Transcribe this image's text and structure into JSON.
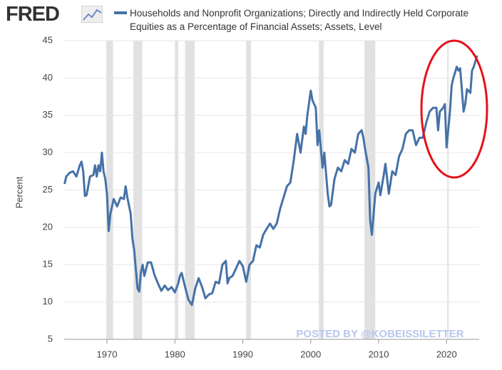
{
  "logo": "FRED",
  "chart_data": {
    "type": "line",
    "y_label": "Percent",
    "watermark": "POSTED BY @KOBEISSILETTER",
    "xlim": [
      1963.7,
      2024.8
    ],
    "xticks": [
      1970,
      1980,
      1990,
      2000,
      2010,
      2020
    ],
    "ylim": [
      5,
      45
    ],
    "yticks": [
      5,
      10,
      15,
      20,
      25,
      30,
      35,
      40,
      45
    ],
    "grid": true,
    "recessions": [
      [
        1969.9,
        1970.9
      ],
      [
        1973.9,
        1975.2
      ],
      [
        1980.0,
        1980.5
      ],
      [
        1981.5,
        1982.9
      ],
      [
        1990.5,
        1991.2
      ],
      [
        2001.2,
        2001.9
      ],
      [
        2007.9,
        2009.5
      ],
      [
        2020.1,
        2020.3
      ]
    ],
    "x": [
      1963.75,
      1964,
      1964.5,
      1965,
      1965.5,
      1966,
      1966.25,
      1966.5,
      1966.75,
      1967,
      1967.5,
      1968,
      1968.25,
      1968.5,
      1968.75,
      1969,
      1969.25,
      1969.5,
      1969.75,
      1970,
      1970.25,
      1970.5,
      1971,
      1971.5,
      1972,
      1972.5,
      1972.75,
      1973,
      1973.5,
      1973.75,
      1974,
      1974.5,
      1974.75,
      1975,
      1975.25,
      1975.5,
      1976,
      1976.5,
      1977,
      1977.5,
      1978,
      1978.5,
      1979,
      1979.5,
      1980,
      1980.5,
      1980.75,
      1981,
      1981.5,
      1982,
      1982.5,
      1983,
      1983.5,
      1984,
      1984.5,
      1985,
      1985.5,
      1986,
      1986.5,
      1987,
      1987.5,
      1987.75,
      1988,
      1988.5,
      1989,
      1989.5,
      1990,
      1990.5,
      1991,
      1991.5,
      1992,
      1992.5,
      1993,
      1993.5,
      1994,
      1994.5,
      1995,
      1995.5,
      1996,
      1996.5,
      1997,
      1997.5,
      1998,
      1998.5,
      1999,
      1999.25,
      1999.5,
      2000,
      2000.25,
      2000.75,
      2001,
      2001.25,
      2001.75,
      2002,
      2002.5,
      2002.75,
      2003,
      2003.5,
      2004,
      2004.5,
      2005,
      2005.5,
      2006,
      2006.5,
      2007,
      2007.5,
      2007.75,
      2008,
      2008.5,
      2008.75,
      2009,
      2009.5,
      2010,
      2010.25,
      2010.75,
      2011,
      2011.5,
      2012,
      2012.5,
      2013,
      2013.5,
      2014,
      2014.5,
      2015,
      2015.5,
      2016,
      2016.5,
      2017,
      2017.5,
      2018,
      2018.5,
      2018.75,
      2019,
      2019.5,
      2019.75,
      2020,
      2020.5,
      2020.75,
      2021,
      2021.5,
      2021.75,
      2022,
      2022.25,
      2022.5,
      2022.75,
      2023,
      2023.5,
      2023.75,
      2024,
      2024.5
    ],
    "series": [
      {
        "name": "Households and Nonprofit Organizations; Directly and Indirectly Held Corporate Equities as a Percentage of Financial Assets; Assets, Level",
        "color": "#4572a7",
        "values": [
          25.8,
          26.8,
          27.3,
          27.5,
          26.8,
          28.3,
          28.8,
          27.5,
          24.2,
          24.3,
          26.8,
          27.0,
          28.3,
          26.8,
          28.3,
          27.5,
          30.0,
          27.5,
          26.5,
          24.5,
          19.5,
          21.8,
          23.8,
          22.8,
          24.0,
          23.8,
          25.5,
          24.0,
          21.8,
          18.5,
          17.0,
          11.8,
          11.4,
          14.0,
          15.0,
          13.5,
          15.3,
          15.3,
          13.6,
          12.5,
          11.5,
          12.2,
          11.6,
          12.0,
          11.3,
          12.5,
          13.5,
          13.9,
          12.0,
          10.3,
          9.6,
          11.8,
          13.2,
          12.0,
          10.5,
          11.0,
          11.2,
          12.7,
          12.5,
          15.0,
          15.5,
          12.5,
          13.2,
          13.5,
          14.5,
          15.5,
          14.8,
          12.7,
          15.0,
          15.5,
          17.6,
          17.3,
          19.0,
          19.8,
          20.5,
          19.8,
          20.5,
          22.5,
          24.0,
          25.5,
          26.0,
          29.0,
          32.5,
          30.0,
          33.5,
          32.5,
          35.0,
          38.3,
          37.0,
          36.0,
          31.0,
          33.0,
          28.0,
          30.0,
          24.5,
          22.8,
          23.0,
          26.5,
          28.0,
          27.5,
          29.0,
          28.5,
          30.5,
          30.0,
          32.5,
          33.0,
          32.0,
          30.5,
          28.0,
          21.0,
          19.0,
          24.5,
          26.0,
          24.3,
          27.0,
          28.5,
          24.5,
          27.5,
          27.0,
          29.5,
          30.5,
          32.5,
          33.0,
          33.0,
          31.0,
          32.0,
          32.0,
          34.0,
          35.5,
          36.0,
          36.0,
          33.0,
          35.5,
          36.0,
          36.5,
          30.7,
          35.5,
          39.0,
          40.0,
          41.5,
          41.0,
          41.3,
          38.5,
          35.5,
          36.5,
          38.5,
          38.0,
          41.0,
          41.5,
          43.0
        ]
      }
    ]
  }
}
